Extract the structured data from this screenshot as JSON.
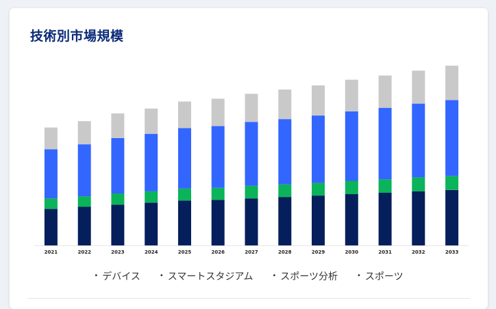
{
  "title": "技術別市場規模",
  "colors": {
    "title": "#0b2a78",
    "background": "#eef2f7",
    "card": "#ffffff"
  },
  "legend": [
    {
      "label": "デバイス",
      "marker": "•"
    },
    {
      "label": "スマートスタジアム",
      "marker": "•"
    },
    {
      "label": "スポーツ分析",
      "marker": "•"
    },
    {
      "label": "スポーツ",
      "marker": "•"
    }
  ],
  "chart_data": {
    "type": "bar",
    "stacked": true,
    "categories": [
      "2021",
      "2022",
      "2023",
      "2024",
      "2025",
      "2026",
      "2027",
      "2028",
      "2029",
      "2030",
      "2031",
      "2032",
      "2033"
    ],
    "series": [
      {
        "key": "navy",
        "color": "#041f5c",
        "values": [
          52,
          55,
          58,
          61,
          64,
          65,
          67,
          69,
          71,
          73,
          75,
          77,
          79
        ]
      },
      {
        "key": "green",
        "color": "#0bb35a",
        "values": [
          15,
          15,
          16,
          16,
          17,
          17,
          18,
          18,
          18,
          19,
          19,
          20,
          20
        ]
      },
      {
        "key": "blue",
        "color": "#3366ff",
        "values": [
          70,
          74,
          79,
          82,
          86,
          88,
          91,
          93,
          96,
          99,
          102,
          105,
          108
        ]
      },
      {
        "key": "gray",
        "color": "#c9c9c9",
        "values": [
          31,
          33,
          35,
          36,
          38,
          39,
          40,
          42,
          43,
          45,
          46,
          47,
          49
        ]
      }
    ],
    "ylim": [
      0,
      260
    ],
    "grid": false,
    "legend_position": "bottom"
  }
}
